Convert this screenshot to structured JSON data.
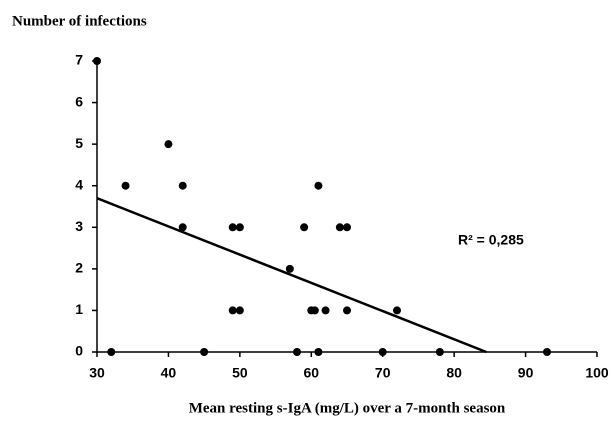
{
  "chart_data": {
    "type": "scatter",
    "title": "Number of infections",
    "xlabel": "Mean resting s-IgA (mg/L) over a 7-month season",
    "annotation": "R² = 0,285",
    "color": "#000000",
    "x": [
      30,
      34,
      32,
      40,
      42,
      42,
      45,
      49,
      50,
      49,
      50,
      57,
      58,
      59,
      60,
      60.5,
      61,
      61,
      62,
      64,
      65,
      65,
      70,
      72,
      78,
      93
    ],
    "y": [
      7,
      4,
      0,
      5,
      4,
      3,
      0,
      3,
      3,
      1,
      1,
      2,
      0,
      3,
      1,
      1,
      4,
      0,
      1,
      3,
      3,
      1,
      0,
      1,
      0,
      0
    ],
    "trendline": {
      "x": [
        30,
        84.5
      ],
      "y": [
        3.7,
        0
      ]
    },
    "xlim": [
      30,
      100
    ],
    "xticks": [
      30,
      40,
      50,
      60,
      70,
      80,
      90,
      100
    ],
    "ylim": [
      0,
      7
    ],
    "yticks": [
      0,
      1,
      2,
      3,
      4,
      5,
      6,
      7
    ]
  }
}
